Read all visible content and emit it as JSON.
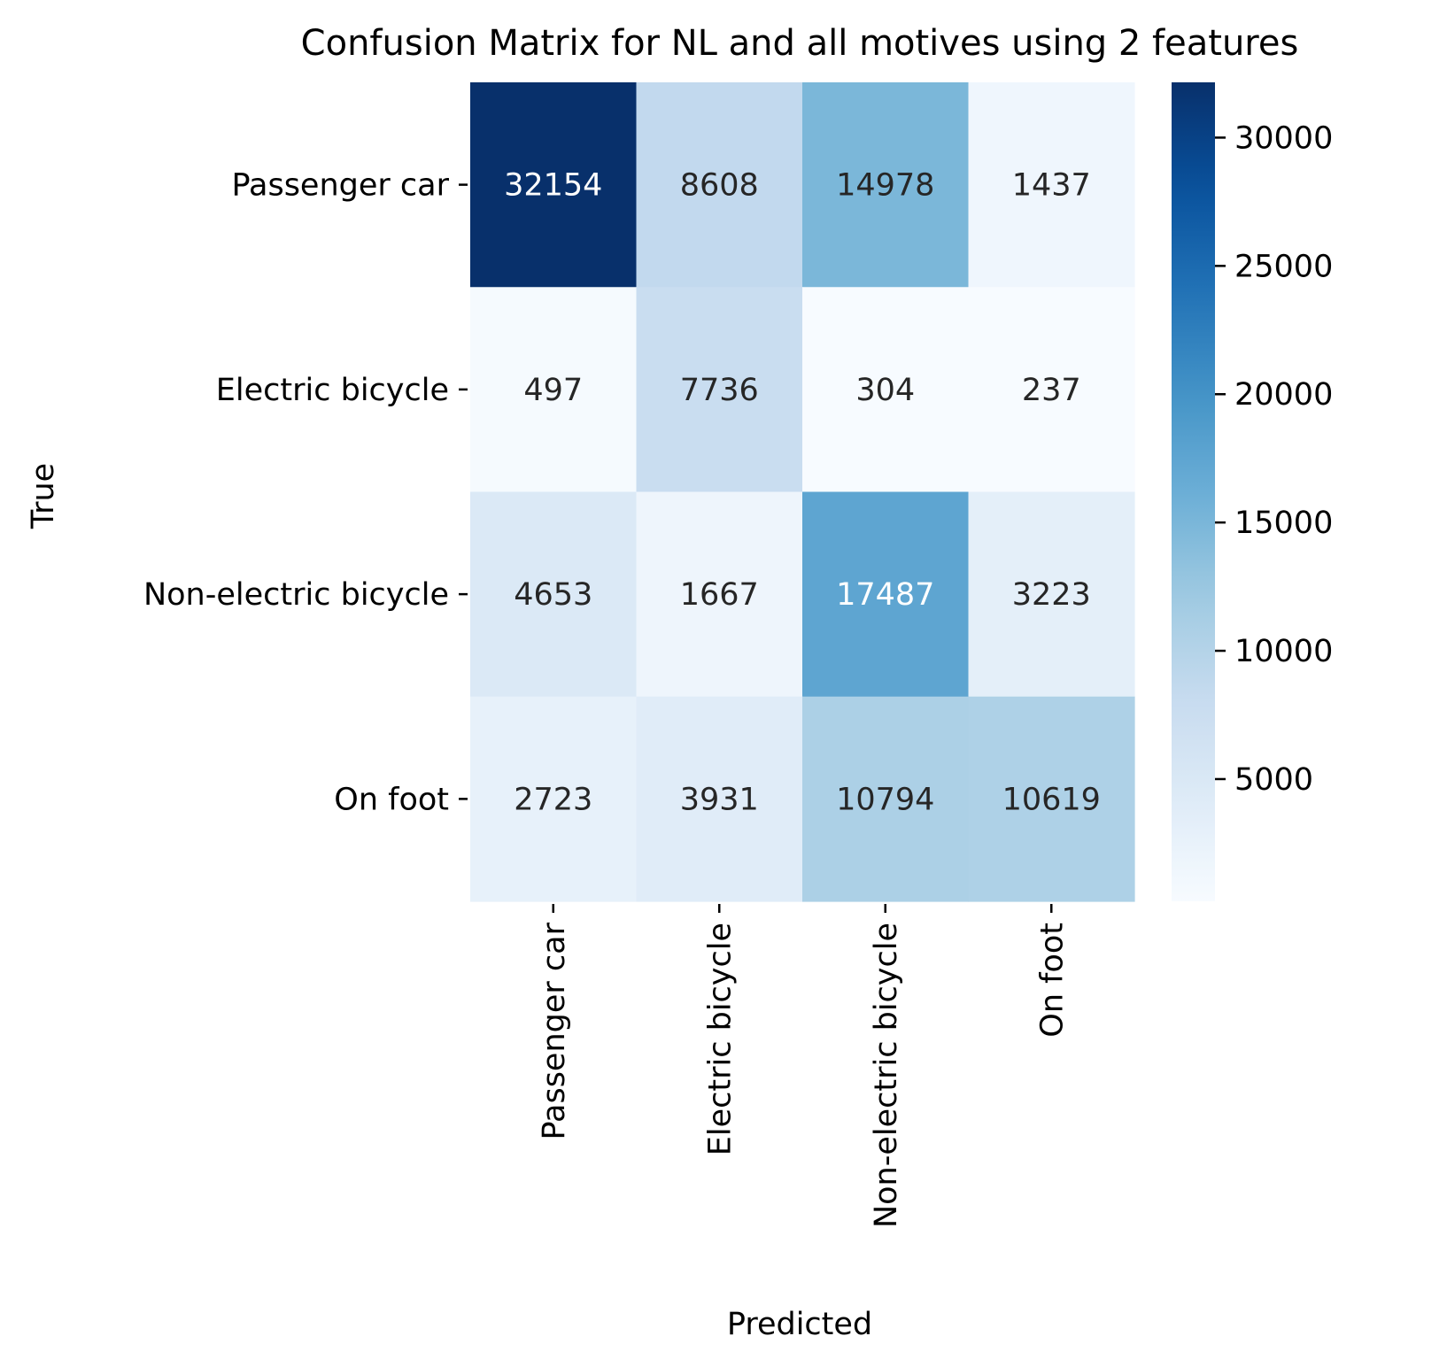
{
  "chart_data": {
    "type": "heatmap",
    "title": "Confusion Matrix for NL and all motives using 2 features",
    "xlabel": "Predicted",
    "ylabel": "True",
    "x_categories": [
      "Passenger car",
      "Electric bicycle",
      "Non-electric bicycle",
      "On foot"
    ],
    "y_categories": [
      "Passenger car",
      "Electric bicycle",
      "Non-electric bicycle",
      "On foot"
    ],
    "matrix": [
      [
        32154,
        8608,
        14978,
        1437
      ],
      [
        497,
        7736,
        304,
        237
      ],
      [
        4653,
        1667,
        17487,
        3223
      ],
      [
        2723,
        3931,
        10794,
        10619
      ]
    ],
    "colormap": "Blues",
    "colorbar": {
      "range": [
        237,
        32154
      ],
      "ticks": [
        5000,
        10000,
        15000,
        20000,
        25000,
        30000
      ]
    },
    "colors": {
      "text_dark": "#262626",
      "text_light": "#ffffff"
    }
  }
}
